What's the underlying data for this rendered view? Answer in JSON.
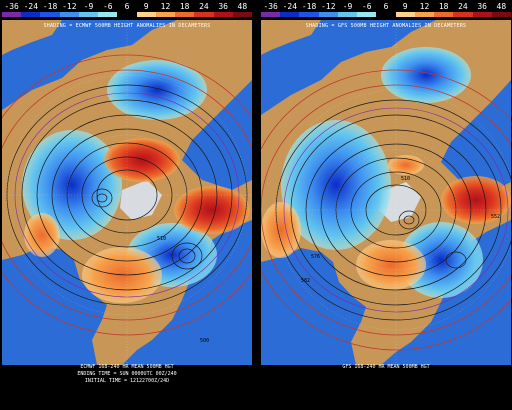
{
  "colorbar": {
    "ticks": [
      "-36",
      "-24",
      "-18",
      "-12",
      "-9",
      "-6",
      "6",
      "9",
      "12",
      "18",
      "24",
      "36",
      "48"
    ],
    "colors": [
      "#7a2aa8",
      "#0b2cc8",
      "#1e55e8",
      "#3e8ff0",
      "#63c6ef",
      "#98e6f2",
      "#000000",
      "#ffd08a",
      "#f7a24c",
      "#ec6a2c",
      "#d7311f",
      "#b0101a",
      "#7a0b12"
    ]
  },
  "left_panel": {
    "subtitle": "SHADING = ECMWF 500MB HEIGHT ANOMALIES IN DECAMETERS",
    "footer_line1": "ECMWF 168-240 HR MEAN 500MB HGT",
    "footer_line2": "ENDING TIME = SUN 0000UTC 00Z/240",
    "footer_line3": "INITIAL TIME = 12122700Z/24D",
    "contour_labels": [
      "570",
      "570",
      "540",
      "5 1",
      "510",
      "500"
    ]
  },
  "right_panel": {
    "subtitle": "SHADING = GFS 500MB HEIGHT ANOMALIES IN DECAMETERS",
    "footer_line1": "GFS 168-240 HR MEAN 500MB HGT",
    "contour_labels": [
      "510",
      "576",
      "582",
      "552"
    ]
  },
  "colors": {
    "ocean": "#2c6cd6",
    "land": "#c89656",
    "background": "#000000",
    "border": "#3a2410"
  }
}
